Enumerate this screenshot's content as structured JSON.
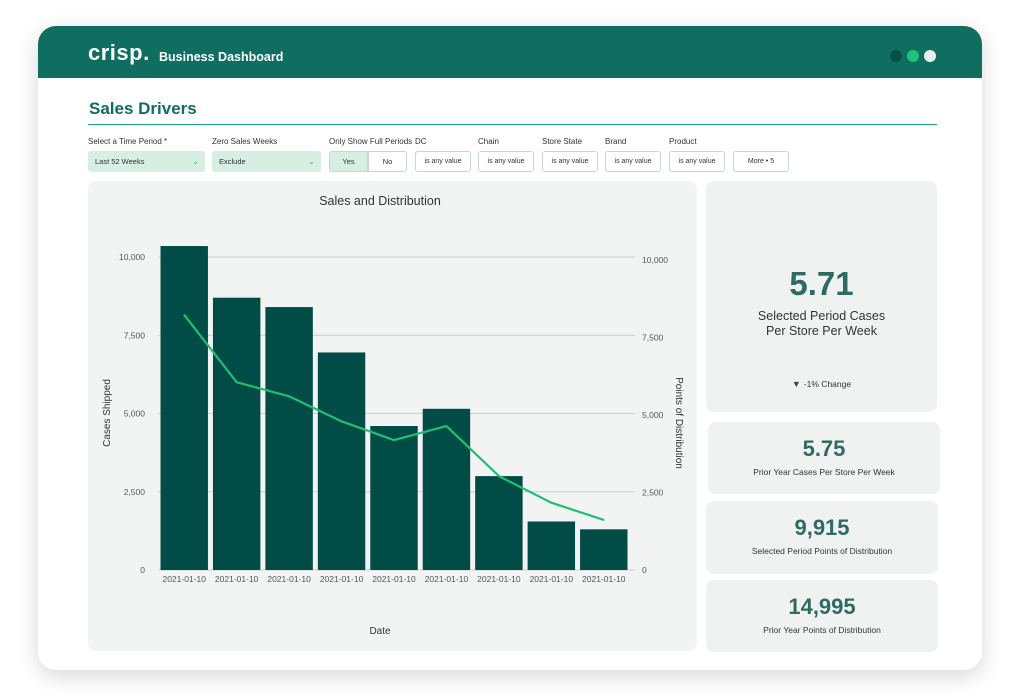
{
  "app": {
    "logo": "crisp.",
    "title": "Business Dashboard"
  },
  "page": {
    "title": "Sales Drivers"
  },
  "filters": {
    "time_period": {
      "label": "Select a Time Period *",
      "value": "Last 52 Weeks"
    },
    "zero_sales": {
      "label": "Zero Sales Weeks",
      "value": "Exclude"
    },
    "full_periods": {
      "label": "Only Show Full Periods",
      "yes": "Yes",
      "no": "No",
      "selected": "Yes"
    },
    "dc": {
      "label": "DC",
      "value": "is any value"
    },
    "chain": {
      "label": "Chain",
      "value": "is any value"
    },
    "store_state": {
      "label": "Store State",
      "value": "is any value"
    },
    "brand": {
      "label": "Brand",
      "value": "is any value"
    },
    "product": {
      "label": "Product",
      "value": "is any value"
    },
    "more": "More • 5"
  },
  "chart_data": {
    "type": "bar",
    "title": "Sales and Distribution",
    "xlabel": "Date",
    "ylabel": "Cases Shipped",
    "y2label": "Points of Distribution",
    "categories": [
      "2021-01-10",
      "2021-01-10",
      "2021-01-10",
      "2021-01-10",
      "2021-01-10",
      "2021-01-10",
      "2021-01-10",
      "2021-01-10",
      "2021-01-10"
    ],
    "ylim": [
      0,
      10000
    ],
    "y2lim": [
      0,
      10000
    ],
    "yticks": [
      0,
      2500,
      5000,
      7500,
      10000
    ],
    "ytick_labels": [
      "0",
      "2,500",
      "5,000",
      "7,500",
      "10,000"
    ],
    "grid": true,
    "series": [
      {
        "type": "bar",
        "color": "#024c47",
        "values": [
          10350,
          8700,
          8400,
          6950,
          4600,
          5150,
          3000,
          1550,
          1300
        ]
      },
      {
        "type": "line",
        "color": "#1fbf73",
        "values": [
          8150,
          6000,
          5550,
          4750,
          4150,
          4600,
          3000,
          2150,
          1600
        ]
      }
    ]
  },
  "metrics": {
    "selected_cases": {
      "value": "5.71",
      "label_line1": "Selected Period Cases",
      "label_line2": "Per Store Per Week",
      "change": "-1% Change"
    },
    "prior_cases": {
      "value": "5.75",
      "label": "Prior Year Cases Per Store Per Week"
    },
    "selected_points": {
      "value": "9,915",
      "label": "Selected Period Points of Distribution"
    },
    "prior_points": {
      "value": "14,995",
      "label": "Prior Year Points of Distribution"
    }
  }
}
